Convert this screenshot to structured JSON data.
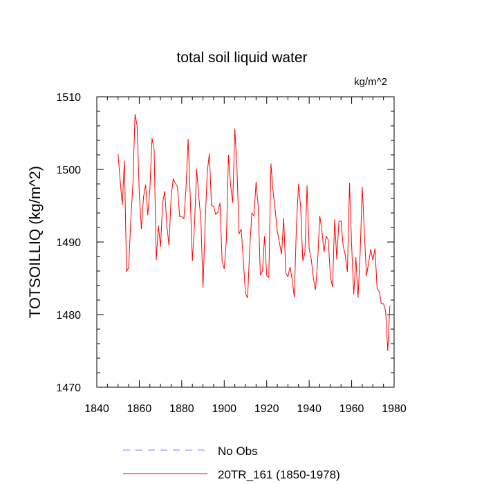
{
  "chart_data": {
    "type": "line",
    "title": "total soil liquid water",
    "units": "kg/m^2",
    "xlabel": "",
    "ylabel": "TOTSOILLIQ  (kg/m^2)",
    "xlim": [
      1840,
      1980
    ],
    "ylim": [
      1470,
      1510
    ],
    "xticks": [
      1840,
      1860,
      1880,
      1900,
      1920,
      1940,
      1960,
      1980
    ],
    "yticks": [
      1470,
      1480,
      1490,
      1500,
      1510
    ],
    "legend_position": "bottom",
    "series": [
      {
        "name": "No Obs",
        "color": "#8080ff",
        "dash": "dashed",
        "x": [],
        "values": []
      },
      {
        "name": "20TR_161 (1850-1978)",
        "color": "#ff0000",
        "dash": "solid",
        "x": [
          1850,
          1851,
          1852,
          1853,
          1854,
          1855,
          1856,
          1857,
          1858,
          1859,
          1860,
          1861,
          1862,
          1863,
          1864,
          1865,
          1866,
          1867,
          1868,
          1869,
          1870,
          1871,
          1872,
          1873,
          1874,
          1875,
          1876,
          1877,
          1878,
          1879,
          1880,
          1881,
          1882,
          1883,
          1884,
          1885,
          1886,
          1887,
          1888,
          1889,
          1890,
          1891,
          1892,
          1893,
          1894,
          1895,
          1896,
          1897,
          1898,
          1899,
          1900,
          1901,
          1902,
          1903,
          1904,
          1905,
          1906,
          1907,
          1908,
          1909,
          1910,
          1911,
          1912,
          1913,
          1914,
          1915,
          1916,
          1917,
          1918,
          1919,
          1920,
          1921,
          1922,
          1923,
          1924,
          1925,
          1926,
          1927,
          1928,
          1929,
          1930,
          1931,
          1932,
          1933,
          1934,
          1935,
          1936,
          1937,
          1938,
          1939,
          1940,
          1941,
          1942,
          1943,
          1944,
          1945,
          1946,
          1947,
          1948,
          1949,
          1950,
          1951,
          1952,
          1953,
          1954,
          1955,
          1956,
          1957,
          1958,
          1959,
          1960,
          1961,
          1962,
          1963,
          1964,
          1965,
          1966,
          1967,
          1968,
          1969,
          1970,
          1971,
          1972,
          1973,
          1974,
          1975,
          1976,
          1977,
          1978
        ],
        "values": [
          1502.1,
          1498.5,
          1495.1,
          1501.2,
          1485.9,
          1486.5,
          1493.0,
          1498.0,
          1507.6,
          1506.0,
          1496.8,
          1491.8,
          1496.2,
          1497.9,
          1493.7,
          1497.3,
          1504.3,
          1502.7,
          1487.5,
          1492.3,
          1489.3,
          1495.4,
          1497.0,
          1492.2,
          1489.5,
          1496.2,
          1498.7,
          1498.1,
          1497.6,
          1493.5,
          1493.5,
          1493.2,
          1497.3,
          1504.2,
          1496.2,
          1487.4,
          1492.3,
          1500.1,
          1496.3,
          1493.1,
          1483.7,
          1492.3,
          1499.6,
          1502.2,
          1495.0,
          1494.9,
          1493.8,
          1494.1,
          1495.4,
          1487.4,
          1486.3,
          1490.2,
          1502.0,
          1497.8,
          1495.4,
          1505.6,
          1500.2,
          1491.1,
          1491.8,
          1487.4,
          1482.9,
          1482.3,
          1489.0,
          1494.0,
          1493.6,
          1498.3,
          1494.9,
          1485.5,
          1486.0,
          1490.8,
          1485.4,
          1485.1,
          1500.8,
          1497.0,
          1494.4,
          1491.5,
          1489.9,
          1488.3,
          1493.3,
          1485.7,
          1485.2,
          1486.6,
          1484.8,
          1482.4,
          1492.2,
          1498.0,
          1494.8,
          1487.4,
          1488.5,
          1497.8,
          1489.0,
          1487.6,
          1485.0,
          1483.4,
          1487.4,
          1493.6,
          1491.6,
          1488.6,
          1490.8,
          1490.3,
          1485.2,
          1483.8,
          1493.1,
          1487.6,
          1492.8,
          1492.9,
          1489.5,
          1488.2,
          1485.9,
          1498.1,
          1489.5,
          1482.8,
          1487.9,
          1482.3,
          1488.4,
          1497.6,
          1491.2,
          1485.3,
          1487.2,
          1489.0,
          1487.5,
          1489.1,
          1483.5,
          1483.2,
          1481.5,
          1481.5,
          1480.5,
          1475.0,
          1481.2
        ]
      }
    ]
  }
}
